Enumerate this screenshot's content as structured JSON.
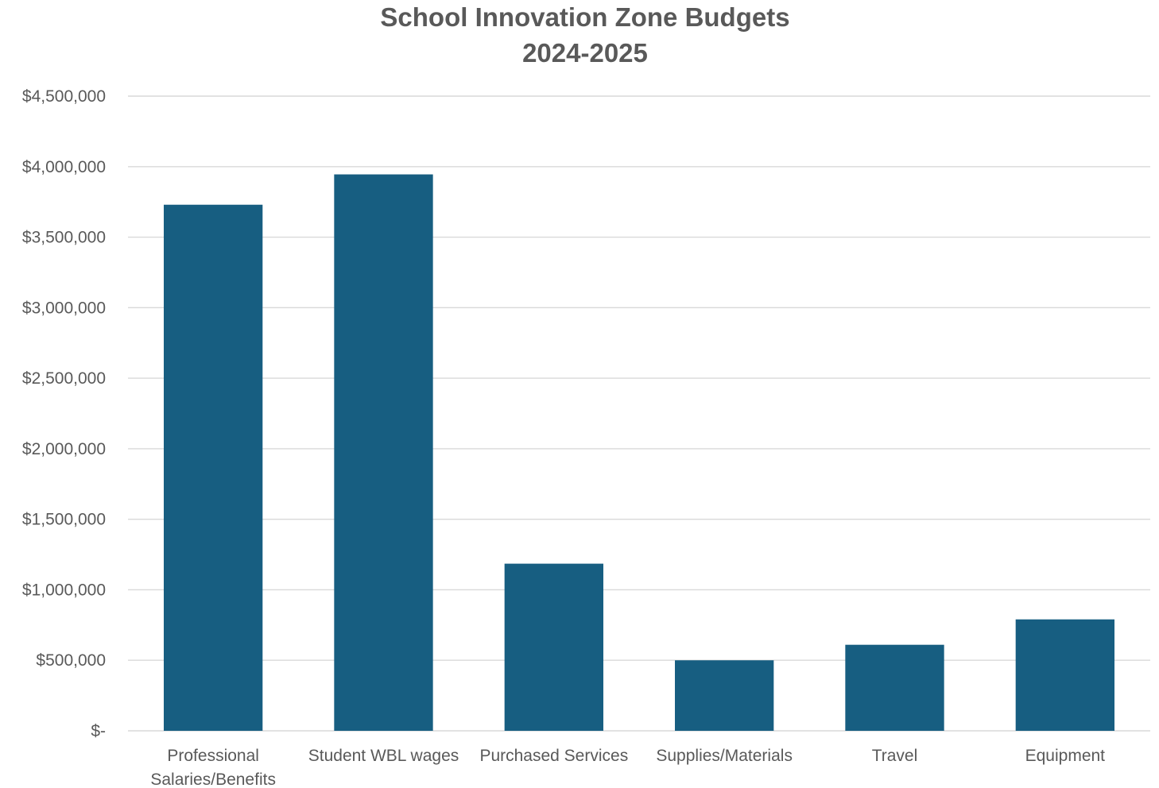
{
  "chart_data": {
    "type": "bar",
    "title": "School Innovation Zone Budgets",
    "subtitle": "2024-2025",
    "categories": [
      [
        "Professional",
        "Salaries/Benefits"
      ],
      [
        "Student WBL wages"
      ],
      [
        "Purchased Services"
      ],
      [
        "Supplies/Materials"
      ],
      [
        "Travel"
      ],
      [
        "Equipment"
      ]
    ],
    "values": [
      3730000,
      3945000,
      1185000,
      500000,
      610000,
      790000
    ],
    "ylim": [
      0,
      4500000
    ],
    "y_ticks": [
      0,
      500000,
      1000000,
      1500000,
      2000000,
      2500000,
      3000000,
      3500000,
      4000000,
      4500000
    ],
    "y_tick_labels": [
      "$-",
      "$500,000",
      "$1,000,000",
      "$1,500,000",
      "$2,000,000",
      "$2,500,000",
      "$3,000,000",
      "$3,500,000",
      "$4,000,000",
      "$4,500,000"
    ],
    "xlabel": "",
    "ylabel": "",
    "grid": true,
    "legend": "none",
    "bar_color": "#175e81"
  }
}
